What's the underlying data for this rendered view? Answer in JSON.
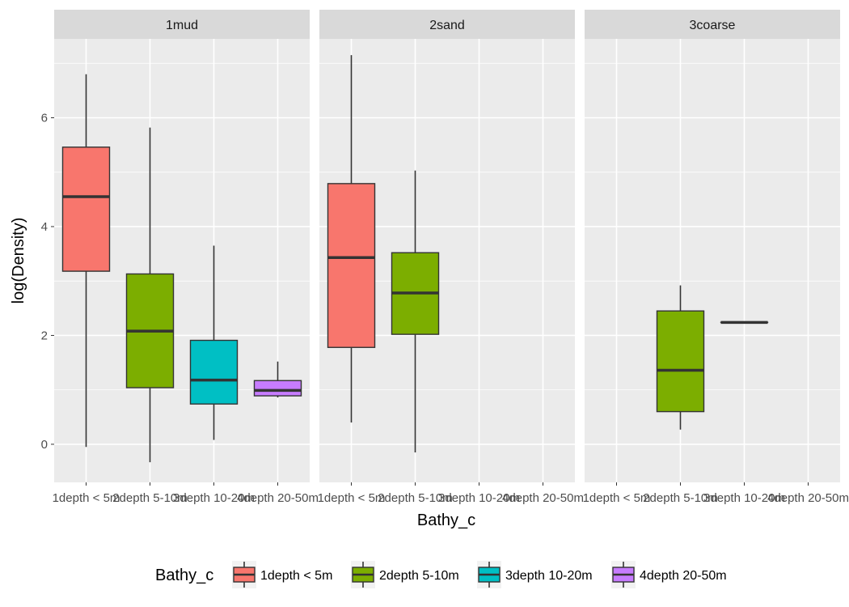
{
  "chart_data": {
    "type": "boxplot",
    "xlabel": "Bathy_c",
    "ylabel": "log(Density)",
    "ylim": [
      -0.7,
      7.45
    ],
    "yticks": [
      0,
      2,
      4,
      6
    ],
    "categories": [
      "1depth < 5m",
      "2depth 5-10m",
      "3depth 10-20m",
      "4depth 20-50m"
    ],
    "category_tick_labels": [
      "1depth < 5m",
      "2depth 5-10m",
      "3depth 10-20m",
      "4depth 20-50m"
    ],
    "colors": {
      "1depth < 5m": "#F8766D",
      "2depth 5-10m": "#7CAE00",
      "3depth 10-20m": "#00BFC4",
      "4depth 20-50m": "#C77CFF"
    },
    "panel_background": "#EBEBEB",
    "strip_background": "#D9D9D9",
    "grid": true,
    "legend": {
      "title": "Bathy_c",
      "position": "bottom",
      "entries": [
        "1depth < 5m",
        "2depth 5-10m",
        "3depth 10-20m",
        "4depth 20-50m"
      ]
    },
    "facets": [
      {
        "name": "1mud",
        "boxes": [
          {
            "category": "1depth < 5m",
            "min": -0.05,
            "q1": 3.18,
            "median": 4.55,
            "q3": 5.46,
            "max": 6.8
          },
          {
            "category": "2depth 5-10m",
            "min": -0.33,
            "q1": 1.04,
            "median": 2.08,
            "q3": 3.13,
            "max": 5.82
          },
          {
            "category": "3depth 10-20m",
            "min": 0.08,
            "q1": 0.74,
            "median": 1.18,
            "q3": 1.91,
            "max": 3.65
          },
          {
            "category": "4depth 20-50m",
            "min": 0.86,
            "q1": 0.89,
            "median": 0.99,
            "q3": 1.17,
            "max": 1.52
          }
        ]
      },
      {
        "name": "2sand",
        "boxes": [
          {
            "category": "1depth < 5m",
            "min": 0.4,
            "q1": 1.78,
            "median": 3.43,
            "q3": 4.79,
            "max": 7.15
          },
          {
            "category": "2depth 5-10m",
            "min": -0.15,
            "q1": 2.02,
            "median": 2.78,
            "q3": 3.52,
            "max": 5.03
          }
        ]
      },
      {
        "name": "3coarse",
        "boxes": [
          {
            "category": "2depth 5-10m",
            "min": 0.27,
            "q1": 0.6,
            "median": 1.36,
            "q3": 2.45,
            "max": 2.92
          },
          {
            "category": "3depth 10-20m",
            "min": 2.24,
            "q1": 2.24,
            "median": 2.24,
            "q3": 2.24,
            "max": 2.24
          }
        ]
      }
    ]
  }
}
